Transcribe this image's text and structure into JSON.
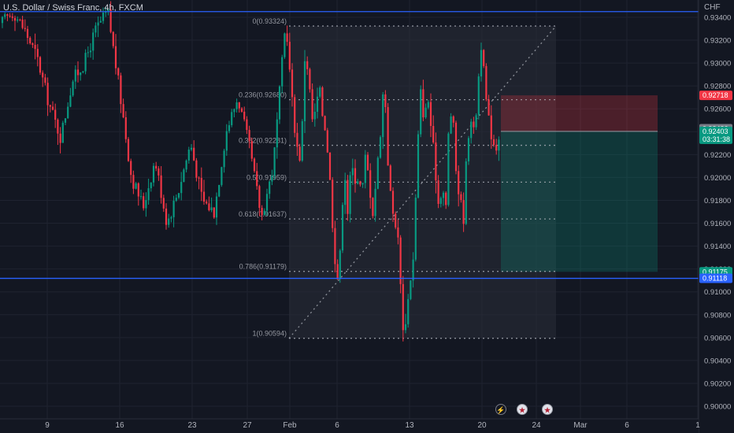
{
  "header": {
    "symbol_title": "U.S. Dollar / Swiss Franc, 4h, FXCM",
    "currency": "CHF"
  },
  "events": [
    {
      "icon": "lightning-icon",
      "glyph": "⚡"
    },
    {
      "icon": "us-flag-icon",
      "glyph": "★"
    },
    {
      "icon": "us-flag-icon",
      "glyph": "★"
    }
  ],
  "chart_data": {
    "type": "candlestick",
    "instrument": "U.S. Dollar / Swiss Franc",
    "timeframe": "4h",
    "source": "FXCM",
    "y_axis": {
      "ticks": [
        "0.93400",
        "0.93200",
        "0.93000",
        "0.92800",
        "0.92600",
        "0.92400",
        "0.92200",
        "0.92000",
        "0.91800",
        "0.91600",
        "0.91400",
        "0.91200",
        "0.91000",
        "0.90800",
        "0.90600",
        "0.90400",
        "0.90200",
        "0.90000"
      ],
      "ylim": [
        0.9,
        0.934
      ]
    },
    "x_axis": {
      "ticks": [
        "9",
        "16",
        "23",
        "27",
        "Feb",
        "6",
        "13",
        "20",
        "24",
        "Mar",
        "6",
        "1"
      ]
    },
    "price_path": [
      [
        0.9335,
        0.9345,
        0.9328,
        0.9305,
        0.9265,
        0.9235,
        0.9285,
        0.93,
        0.933,
        0.9345,
        0.9275,
        0.92,
        0.9175,
        0.9215,
        0.916,
        0.919,
        0.923,
        0.918,
        0.917,
        0.924,
        0.927,
        0.9225,
        0.9165,
        0.921,
        0.933
      ],
      [
        0.933,
        0.9285,
        0.925,
        0.9225,
        0.9215,
        0.9305,
        0.9295,
        0.925,
        0.9255,
        0.928,
        0.9255,
        0.924,
        0.92,
        0.915,
        0.9108,
        0.9135,
        0.9215,
        0.917,
        0.921,
        0.92,
        0.92,
        0.9185,
        0.922,
        0.9195,
        0.917,
        0.92,
        0.9235,
        0.928
      ],
      [
        0.927,
        0.92,
        0.917,
        0.916,
        0.9135,
        0.9065,
        0.908,
        0.911,
        0.913,
        0.922,
        0.9275,
        0.925,
        0.927,
        0.924,
        0.921,
        0.9175,
        0.9195,
        0.917,
        0.926,
        0.925,
        0.92,
        0.918,
        0.9165,
        0.923,
        0.9255,
        0.9235,
        0.928,
        0.932,
        0.9275,
        0.925,
        0.9235,
        0.9225,
        0.924
      ]
    ],
    "annotations": [
      {
        "type": "fib",
        "label": "0(0.93324)",
        "level": 0.93324
      },
      {
        "type": "fib",
        "label": "0.236(0.92680)",
        "level": 0.9268
      },
      {
        "type": "fib",
        "label": "0.382(0.92281)",
        "level": 0.92281
      },
      {
        "type": "fib",
        "label": "0.5(0.91959)",
        "level": 0.91959
      },
      {
        "type": "fib",
        "label": "0.618(0.91637)",
        "level": 0.91637
      },
      {
        "type": "fib",
        "label": "0.786(0.91179)",
        "level": 0.91179
      },
      {
        "type": "fib",
        "label": "1(0.90594)",
        "level": 0.90594
      }
    ],
    "horizontal_lines": [
      {
        "price": 0.9345,
        "color": "#2962ff"
      },
      {
        "price": 0.91118,
        "color": "#2962ff"
      }
    ],
    "position": {
      "entry": 0.92403,
      "stop": 0.92718,
      "target": 0.91175
    },
    "price_labels": [
      {
        "text": "0.92718",
        "price": 0.92718,
        "bg": "#f23645",
        "fg": "#ffffff"
      },
      {
        "text": "0.92426",
        "price": 0.92426,
        "bg": "#787b86",
        "fg": "#ffffff"
      },
      {
        "text": "0.92403",
        "sub": "03:31:38",
        "price": 0.92403,
        "bg": "#089981",
        "fg": "#ffffff"
      },
      {
        "text": "0.91175",
        "price": 0.91175,
        "bg": "#089981",
        "fg": "#ffffff"
      },
      {
        "text": "0.91118",
        "price": 0.91118,
        "bg": "#2962ff",
        "fg": "#ffffff"
      }
    ],
    "colors": {
      "up": "#089981",
      "down": "#f23645",
      "background": "#131722",
      "grid": "#1f2330",
      "fib": "#b2b5be",
      "hline": "#2962ff"
    }
  }
}
